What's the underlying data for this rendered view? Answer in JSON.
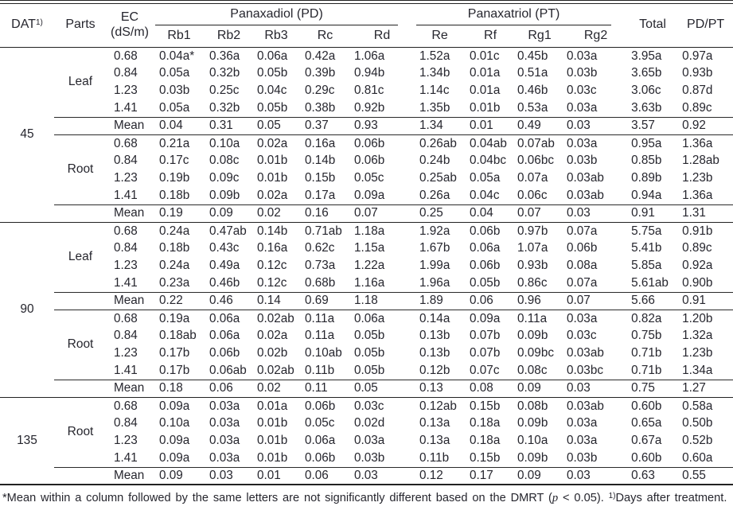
{
  "colors": {
    "text": "#26262e",
    "rule": "#222222",
    "background": "#ffffff"
  },
  "table": {
    "header": {
      "dat": "DAT",
      "dat_sup": "1)",
      "parts": "Parts",
      "ec_line1": "EC",
      "ec_line2": "(dS/m)",
      "pd_group": "Panaxadiol (PD)",
      "pt_group": "Panaxatriol (PT)",
      "pd_cols": [
        "Rb1",
        "Rb2",
        "Rb3",
        "Rc",
        "Rd"
      ],
      "pt_cols": [
        "Re",
        "Rf",
        "Rg1",
        "Rg2"
      ],
      "total": "Total",
      "pdpt": "PD/PT"
    },
    "groups": [
      {
        "dat": "45",
        "blocks": [
          {
            "part": "Leaf",
            "rows": [
              [
                "0.68",
                "0.04a*",
                "0.36a",
                "0.06a",
                "0.42a",
                "1.06a",
                "1.52a",
                "0.01c",
                "0.45b",
                "0.03a",
                "3.95a",
                "0.97a"
              ],
              [
                "0.84",
                "0.05a",
                "0.32b",
                "0.05b",
                "0.39b",
                "0.94b",
                "1.34b",
                "0.01a",
                "0.51a",
                "0.03b",
                "3.65b",
                "0.93b"
              ],
              [
                "1.23",
                "0.03b",
                "0.25c",
                "0.04c",
                "0.29c",
                "0.81c",
                "1.14c",
                "0.01a",
                "0.46b",
                "0.03c",
                "3.06c",
                "0.87d"
              ],
              [
                "1.41",
                "0.05a",
                "0.32b",
                "0.05b",
                "0.38b",
                "0.92b",
                "1.35b",
                "0.01b",
                "0.53a",
                "0.03a",
                "3.63b",
                "0.89c"
              ]
            ],
            "mean": [
              "Mean",
              "0.04",
              "0.31",
              "0.05",
              "0.37",
              "0.93",
              "1.34",
              "0.01",
              "0.49",
              "0.03",
              "3.57",
              "0.92"
            ]
          },
          {
            "part": "Root",
            "rows": [
              [
                "0.68",
                "0.21a",
                "0.10a",
                "0.02a",
                "0.16a",
                "0.06b",
                "0.26ab",
                "0.04ab",
                "0.07ab",
                "0.03a",
                "0.95a",
                "1.36a"
              ],
              [
                "0.84",
                "0.17c",
                "0.08c",
                "0.01b",
                "0.14b",
                "0.06b",
                "0.24b",
                "0.04bc",
                "0.06bc",
                "0.03b",
                "0.85b",
                "1.28ab"
              ],
              [
                "1.23",
                "0.19b",
                "0.09c",
                "0.01b",
                "0.15b",
                "0.05c",
                "0.25ab",
                "0.05a",
                "0.07a",
                "0.03ab",
                "0.89b",
                "1.23b"
              ],
              [
                "1.41",
                "0.18b",
                "0.09b",
                "0.02a",
                "0.17a",
                "0.09a",
                "0.26a",
                "0.04c",
                "0.06c",
                "0.03ab",
                "0.94a",
                "1.36a"
              ]
            ],
            "mean": [
              "Mean",
              "0.19",
              "0.09",
              "0.02",
              "0.16",
              "0.07",
              "0.25",
              "0.04",
              "0.07",
              "0.03",
              "0.91",
              "1.31"
            ]
          }
        ]
      },
      {
        "dat": "90",
        "blocks": [
          {
            "part": "Leaf",
            "rows": [
              [
                "0.68",
                "0.24a",
                "0.47ab",
                "0.14b",
                "0.71ab",
                "1.18a",
                "1.92a",
                "0.06b",
                "0.97b",
                "0.07a",
                "5.75a",
                "0.91b"
              ],
              [
                "0.84",
                "0.18b",
                "0.43c",
                "0.16a",
                "0.62c",
                "1.15a",
                "1.67b",
                "0.06a",
                "1.07a",
                "0.06b",
                "5.41b",
                "0.89c"
              ],
              [
                "1.23",
                "0.24a",
                "0.49a",
                "0.12c",
                "0.73a",
                "1.22a",
                "1.99a",
                "0.06b",
                "0.93b",
                "0.08a",
                "5.85a",
                "0.92a"
              ],
              [
                "1.41",
                "0.23a",
                "0.46b",
                "0.12c",
                "0.68b",
                "1.16a",
                "1.96a",
                "0.05b",
                "0.86c",
                "0.07a",
                "5.61ab",
                "0.90b"
              ]
            ],
            "mean": [
              "Mean",
              "0.22",
              "0.46",
              "0.14",
              "0.69",
              "1.18",
              "1.89",
              "0.06",
              "0.96",
              "0.07",
              "5.66",
              "0.91"
            ]
          },
          {
            "part": "Root",
            "rows": [
              [
                "0.68",
                "0.19a",
                "0.06a",
                "0.02ab",
                "0.11a",
                "0.06a",
                "0.14a",
                "0.09a",
                "0.11a",
                "0.03a",
                "0.82a",
                "1.20b"
              ],
              [
                "0.84",
                "0.18ab",
                "0.06a",
                "0.02a",
                "0.11a",
                "0.05b",
                "0.13b",
                "0.07b",
                "0.09b",
                "0.03c",
                "0.75b",
                "1.32a"
              ],
              [
                "1.23",
                "0.17b",
                "0.06b",
                "0.02b",
                "0.10ab",
                "0.05b",
                "0.13b",
                "0.07b",
                "0.09bc",
                "0.03ab",
                "0.71b",
                "1.23b"
              ],
              [
                "1.41",
                "0.17b",
                "0.06ab",
                "0.02ab",
                "0.11b",
                "0.05b",
                "0.12b",
                "0.07c",
                "0.08c",
                "0.03bc",
                "0.71b",
                "1.34a"
              ]
            ],
            "mean": [
              "Mean",
              "0.18",
              "0.06",
              "0.02",
              "0.11",
              "0.05",
              "0.13",
              "0.08",
              "0.09",
              "0.03",
              "0.75",
              "1.27"
            ]
          }
        ]
      },
      {
        "dat": "135",
        "blocks": [
          {
            "part": "Root",
            "rows": [
              [
                "0.68",
                "0.09a",
                "0.03a",
                "0.01a",
                "0.06b",
                "0.03c",
                "0.12ab",
                "0.15b",
                "0.08b",
                "0.03ab",
                "0.60b",
                "0.58a"
              ],
              [
                "0.84",
                "0.10a",
                "0.03a",
                "0.01b",
                "0.05c",
                "0.02d",
                "0.13a",
                "0.18a",
                "0.09b",
                "0.03a",
                "0.65a",
                "0.50b"
              ],
              [
                "1.23",
                "0.09a",
                "0.03a",
                "0.01b",
                "0.06a",
                "0.03a",
                "0.13a",
                "0.18a",
                "0.10a",
                "0.03a",
                "0.67a",
                "0.52b"
              ],
              [
                "1.41",
                "0.09a",
                "0.03a",
                "0.01b",
                "0.06b",
                "0.03b",
                "0.11b",
                "0.15b",
                "0.09b",
                "0.03b",
                "0.60b",
                "0.60a"
              ]
            ],
            "mean": [
              "Mean",
              "0.09",
              "0.03",
              "0.01",
              "0.06",
              "0.03",
              "0.12",
              "0.17",
              "0.09",
              "0.03",
              "0.63",
              "0.55"
            ]
          }
        ]
      }
    ]
  },
  "footnote": {
    "star_text": "*Mean within a column followed by the same letters are not significantly different based on the DMRT (",
    "p_italic": "p",
    "after_p": " < 0.05). ",
    "sup": "1)",
    "days_text": "Days after treatment."
  }
}
